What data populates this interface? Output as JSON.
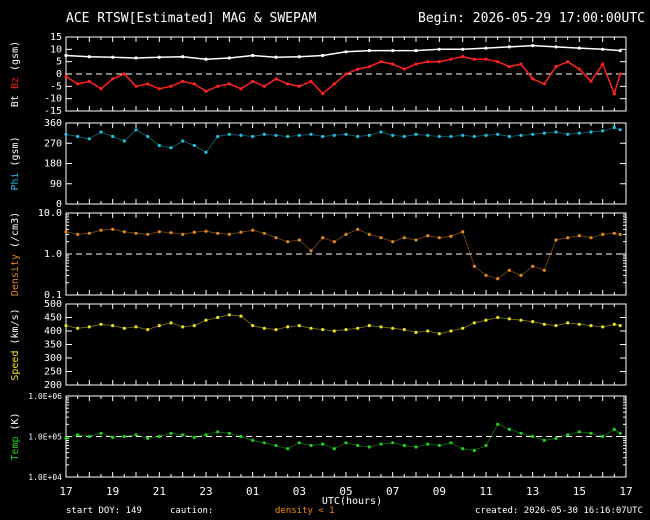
{
  "header": {
    "title": "ACE RTSW[Estimated] MAG & SWEPAM",
    "begin": "Begin: 2026-05-29 17:00:00UTC"
  },
  "footer": {
    "start_doy": "start DOY: 149",
    "caution": "caution:",
    "caution_note": "density < 1",
    "created": "created: 2026-05-30 16:16:07UTC"
  },
  "colors": {
    "bt": "#ffffff",
    "bz": "#ff2020",
    "phi": "#20c0e0",
    "density": "#e08820",
    "speed": "#f0e020",
    "temp": "#20d020",
    "axes": "#ffffff",
    "caution": "#ff8c00"
  },
  "chart_data": [
    {
      "type": "line",
      "panel": "mag",
      "xlabel": "UTC(hours)",
      "ylim": [
        -15,
        15
      ],
      "yticks": [
        -15,
        -10,
        -5,
        0,
        5,
        10,
        15
      ],
      "reference_line": 0,
      "ylabel_parts": [
        {
          "text": "Bt",
          "color": "#ffffff"
        },
        {
          "text": " Bz",
          "color": "#ff2020"
        },
        {
          "text": " (gsm)",
          "color": "#ffffff"
        }
      ],
      "series": [
        {
          "name": "Bt",
          "x": [
            0,
            2,
            4,
            6,
            8,
            10,
            12,
            14,
            16,
            18,
            20,
            22,
            24,
            26,
            28,
            30,
            32,
            34,
            36,
            38,
            40,
            42,
            44,
            46,
            47.5
          ],
          "values": [
            7.5,
            7,
            6.8,
            6.5,
            6.8,
            7,
            6,
            6.5,
            7.5,
            6.8,
            7,
            7.5,
            9,
            9.5,
            9.5,
            9.5,
            10,
            10,
            10.5,
            11,
            11.5,
            11,
            10.5,
            10,
            9.5
          ]
        },
        {
          "name": "Bz",
          "x": [
            0,
            1,
            2,
            3,
            4,
            5,
            6,
            7,
            8,
            9,
            10,
            11,
            12,
            13,
            14,
            15,
            16,
            17,
            18,
            19,
            20,
            21,
            22,
            23,
            24,
            25,
            26,
            27,
            28,
            29,
            30,
            31,
            32,
            33,
            34,
            35,
            36,
            37,
            38,
            39,
            40,
            41,
            42,
            43,
            44,
            45,
            46,
            47,
            47.5
          ],
          "values": [
            -1,
            -4,
            -3,
            -6,
            -2,
            0,
            -5,
            -4,
            -6,
            -5,
            -3,
            -4,
            -7,
            -5,
            -4,
            -6,
            -3,
            -5,
            -2,
            -4,
            -5,
            -3,
            -8,
            -4,
            0,
            2,
            3,
            5,
            4,
            2,
            4,
            5,
            5,
            6,
            7,
            6,
            6,
            5,
            3,
            4,
            -2,
            -4,
            3,
            5,
            2,
            -3,
            4,
            -8,
            0
          ]
        }
      ]
    },
    {
      "type": "scatter",
      "panel": "phi",
      "ylim": [
        0,
        360
      ],
      "yticks": [
        0,
        90,
        180,
        270,
        360
      ],
      "ylabel_parts": [
        {
          "text": "Phi",
          "color": "#20c0e0"
        },
        {
          "text": " (gsm)",
          "color": "#ffffff"
        }
      ],
      "series": [
        {
          "name": "Phi",
          "x": [
            0,
            1,
            2,
            3,
            4,
            5,
            6,
            7,
            8,
            9,
            10,
            11,
            12,
            13,
            14,
            15,
            16,
            17,
            18,
            19,
            20,
            21,
            22,
            23,
            24,
            25,
            26,
            27,
            28,
            29,
            30,
            31,
            32,
            33,
            34,
            35,
            36,
            37,
            38,
            39,
            40,
            41,
            42,
            43,
            44,
            45,
            46,
            47,
            47.5
          ],
          "values": [
            310,
            300,
            290,
            320,
            300,
            280,
            330,
            300,
            260,
            250,
            280,
            260,
            230,
            300,
            310,
            305,
            300,
            310,
            305,
            300,
            305,
            310,
            300,
            305,
            310,
            300,
            305,
            320,
            305,
            300,
            310,
            305,
            300,
            300,
            305,
            300,
            305,
            310,
            300,
            305,
            310,
            315,
            320,
            310,
            315,
            320,
            325,
            340,
            330
          ]
        }
      ]
    },
    {
      "type": "scatter",
      "panel": "density",
      "scale": "log",
      "ylim": [
        0.1,
        10
      ],
      "yticks": [
        0.1,
        1,
        10
      ],
      "ytick_labels": [
        "0.1",
        "1.0",
        "10.0"
      ],
      "reference_line": 1,
      "ylabel_parts": [
        {
          "text": "Density",
          "color": "#e08820"
        },
        {
          "text": " (/cm3)",
          "color": "#ffffff"
        }
      ],
      "series": [
        {
          "name": "Density",
          "x": [
            0,
            1,
            2,
            3,
            4,
            5,
            6,
            7,
            8,
            9,
            10,
            11,
            12,
            13,
            14,
            15,
            16,
            17,
            18,
            19,
            20,
            21,
            22,
            23,
            24,
            25,
            26,
            27,
            28,
            29,
            30,
            31,
            32,
            33,
            34,
            35,
            36,
            37,
            38,
            39,
            40,
            41,
            42,
            43,
            44,
            45,
            46,
            47,
            47.5
          ],
          "values": [
            3.5,
            3,
            3.2,
            3.8,
            4,
            3.5,
            3.2,
            3,
            3.5,
            3.3,
            3,
            3.4,
            3.6,
            3.2,
            3,
            3.4,
            3.8,
            3.2,
            2.5,
            2,
            2.2,
            1.2,
            2.5,
            2,
            3,
            4,
            3,
            2.5,
            2,
            2.5,
            2.2,
            2.8,
            2.5,
            2.7,
            3.5,
            0.5,
            0.3,
            0.25,
            0.4,
            0.3,
            0.5,
            0.4,
            2.2,
            2.5,
            2.8,
            2.5,
            3,
            3.2,
            3
          ]
        }
      ]
    },
    {
      "type": "scatter",
      "panel": "speed",
      "ylim": [
        200,
        500
      ],
      "yticks": [
        200,
        250,
        300,
        350,
        400,
        450,
        500
      ],
      "ylabel_parts": [
        {
          "text": "Speed",
          "color": "#f0e020"
        },
        {
          "text": " (km/s)",
          "color": "#ffffff"
        }
      ],
      "series": [
        {
          "name": "Speed",
          "x": [
            0,
            1,
            2,
            3,
            4,
            5,
            6,
            7,
            8,
            9,
            10,
            11,
            12,
            13,
            14,
            15,
            16,
            17,
            18,
            19,
            20,
            21,
            22,
            23,
            24,
            25,
            26,
            27,
            28,
            29,
            30,
            31,
            32,
            33,
            34,
            35,
            36,
            37,
            38,
            39,
            40,
            41,
            42,
            43,
            44,
            45,
            46,
            47,
            47.5
          ],
          "values": [
            420,
            410,
            415,
            425,
            420,
            410,
            415,
            405,
            420,
            430,
            415,
            420,
            440,
            450,
            460,
            455,
            420,
            410,
            405,
            415,
            420,
            410,
            405,
            400,
            405,
            410,
            420,
            415,
            410,
            405,
            395,
            400,
            390,
            400,
            410,
            430,
            440,
            450,
            445,
            440,
            435,
            425,
            420,
            430,
            425,
            420,
            415,
            425,
            420
          ]
        }
      ]
    },
    {
      "type": "scatter",
      "panel": "temp",
      "scale": "log",
      "ylim": [
        10000,
        1000000
      ],
      "yticks": [
        10000,
        100000,
        1000000
      ],
      "ytick_labels": [
        "1.0E+04",
        "1.0E+05",
        "1.0E+06"
      ],
      "reference_line": 100000,
      "x_tick_labels": [
        "17",
        "19",
        "21",
        "23",
        "01",
        "03",
        "05",
        "07",
        "09",
        "11",
        "13",
        "15",
        "17"
      ],
      "x_tick_hours": [
        0,
        4,
        8,
        12,
        16,
        20,
        24,
        28,
        32,
        36,
        40,
        44,
        48
      ],
      "ylabel_parts": [
        {
          "text": "Temp",
          "color": "#20d020"
        },
        {
          "text": " (K)",
          "color": "#ffffff"
        }
      ],
      "series": [
        {
          "name": "Temp",
          "x": [
            0,
            1,
            2,
            3,
            4,
            5,
            6,
            7,
            8,
            9,
            10,
            11,
            12,
            13,
            14,
            15,
            16,
            17,
            18,
            19,
            20,
            21,
            22,
            23,
            24,
            25,
            26,
            27,
            28,
            29,
            30,
            31,
            32,
            33,
            34,
            35,
            36,
            37,
            38,
            39,
            40,
            41,
            42,
            43,
            44,
            45,
            46,
            47,
            47.5
          ],
          "values": [
            90000,
            110000,
            100000,
            120000,
            95000,
            100000,
            110000,
            90000,
            100000,
            120000,
            110000,
            95000,
            110000,
            130000,
            120000,
            100000,
            80000,
            70000,
            60000,
            50000,
            70000,
            60000,
            65000,
            50000,
            70000,
            60000,
            55000,
            65000,
            70000,
            60000,
            55000,
            65000,
            60000,
            70000,
            50000,
            45000,
            60000,
            200000,
            150000,
            120000,
            100000,
            80000,
            90000,
            110000,
            130000,
            120000,
            100000,
            150000,
            120000
          ]
        }
      ]
    }
  ]
}
